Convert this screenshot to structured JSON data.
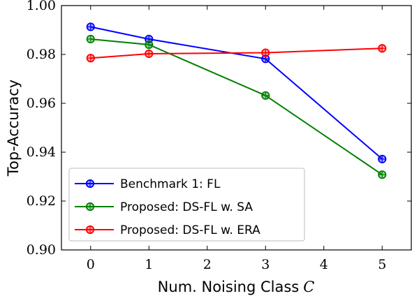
{
  "chart_data": {
    "type": "line",
    "xlabel": "Num. Noising Class",
    "xlabel_symbol": "C",
    "ylabel": "Top-Accuracy",
    "xlim": [
      -0.5,
      5.5
    ],
    "ylim": [
      0.9,
      1.0
    ],
    "xticks": [
      0,
      1,
      2,
      3,
      4,
      5
    ],
    "xtick_labels": [
      "0",
      "1",
      "2",
      "3",
      "4",
      "5"
    ],
    "yticks": [
      0.9,
      0.92,
      0.94,
      0.96,
      0.98,
      1.0
    ],
    "ytick_labels": [
      "0.90",
      "0.92",
      "0.94",
      "0.96",
      "0.98",
      "1.00"
    ],
    "grid": false,
    "legend_position": "bottom-left",
    "series": [
      {
        "name": "Benchmark 1: FL",
        "color": "#0000ff",
        "x": [
          0,
          1,
          3,
          5
        ],
        "y": [
          0.9913,
          0.9863,
          0.9782,
          0.9372
        ]
      },
      {
        "name": "Proposed: DS-FL w. SA",
        "color": "#008000",
        "x": [
          0,
          1,
          3,
          5
        ],
        "y": [
          0.9863,
          0.984,
          0.9632,
          0.9308
        ]
      },
      {
        "name": "Proposed: DS-FL w. ERA",
        "color": "#ff0000",
        "x": [
          0,
          1,
          3,
          5
        ],
        "y": [
          0.9785,
          0.9803,
          0.9807,
          0.9825
        ]
      }
    ]
  }
}
